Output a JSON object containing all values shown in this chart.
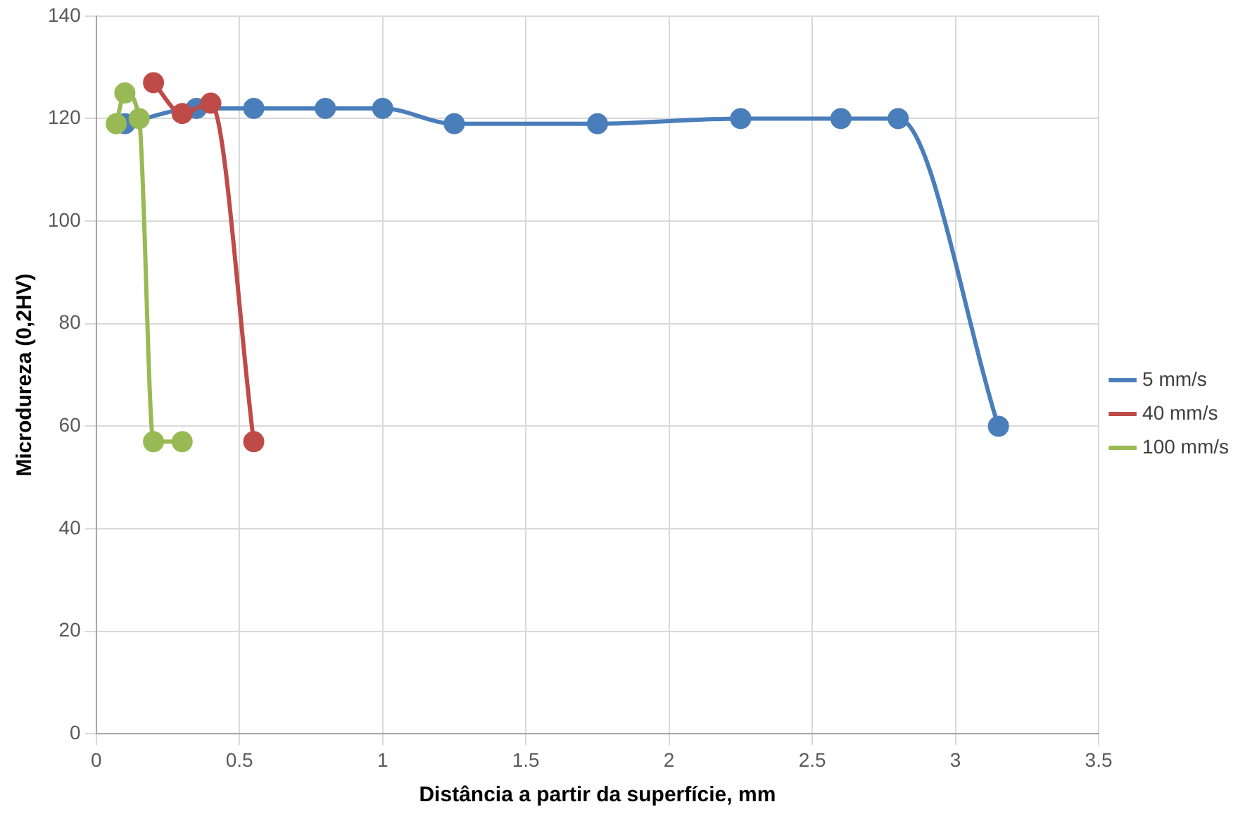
{
  "chart_data": {
    "type": "line",
    "xlabel": "Distância a partir da superfície, mm",
    "ylabel": "Microdureza (0,2HV)",
    "xlim": [
      0,
      3.5
    ],
    "xticks": [
      0,
      0.5,
      1,
      1.5,
      2,
      2.5,
      3,
      3.5
    ],
    "ylim": [
      0,
      140
    ],
    "yticks": [
      0,
      20,
      40,
      60,
      80,
      100,
      120,
      140
    ],
    "grid": true,
    "legend": "right",
    "marker": "circle",
    "line_style": "solid",
    "series": [
      {
        "name": "5 mm/s",
        "color": "#4a7ebb",
        "x": [
          0.1,
          0.35,
          0.55,
          0.8,
          1,
          1.25,
          1.75,
          2.25,
          2.6,
          2.8,
          3.15
        ],
        "values": [
          119,
          122,
          122,
          122,
          122,
          119,
          119,
          120,
          120,
          120,
          60
        ]
      },
      {
        "name": "40 mm/s",
        "color": "#be4b48",
        "x": [
          0.2,
          0.3,
          0.4,
          0.55
        ],
        "values": [
          127,
          121,
          123,
          57
        ]
      },
      {
        "name": "100 mm/s",
        "color": "#98b954",
        "x": [
          0.07,
          0.1,
          0.15,
          0.2,
          0.3
        ],
        "values": [
          119,
          125,
          120,
          57,
          57
        ]
      }
    ]
  }
}
